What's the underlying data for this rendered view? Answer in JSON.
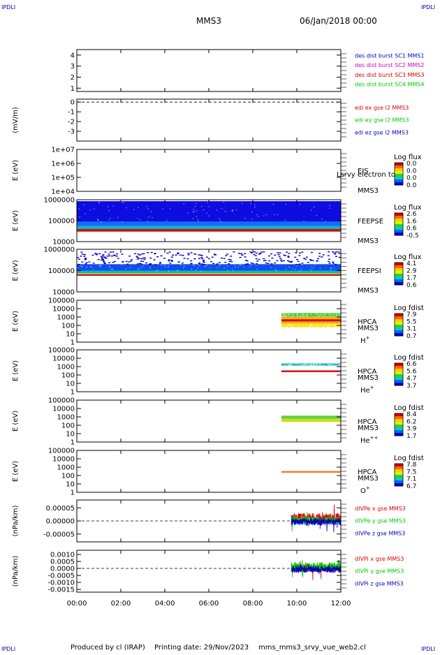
{
  "header": {
    "corner_left": "IPDLI",
    "corner_right": "IPDLI",
    "mission": "MMS3",
    "date": "06/Jan/2018 00:00"
  },
  "footer": {
    "corner_left": "IPDLI",
    "corner_right": "IPDLI",
    "produced_by": "Produced by cl (IRAP)",
    "printing_date": "Printing date: 29/Nov/2023",
    "file": "mms_mms3_srvy_vue_web2.cl"
  },
  "colors": {
    "axis": "#000000",
    "mms1": "#0000cc",
    "mms2": "#cc00cc",
    "mms3": "#cc0000",
    "mms4": "#00cc00",
    "x_comp": "#dd0000",
    "y_comp": "#00cc00",
    "z_comp": "#0000cc"
  },
  "chart_data": [
    {
      "id": "panel-des",
      "type": "line",
      "ylim": [
        0.7,
        4.5
      ],
      "yticks": [
        {
          "v": 1,
          "label": "1"
        },
        {
          "v": 2,
          "label": "2"
        },
        {
          "v": 3,
          "label": "3"
        },
        {
          "v": 4,
          "label": "4"
        }
      ],
      "legend": [
        {
          "text": "des dist burst SC1 MMS1",
          "color": "#0000cc"
        },
        {
          "text": "des dist burst SC2 MMS2",
          "color": "#cc00cc"
        },
        {
          "text": "des dist burst SC3 MMS3",
          "color": "#cc0000"
        },
        {
          "text": "des dist burst SC4 MMS4",
          "color": "#00cc00"
        }
      ]
    },
    {
      "id": "panel-edi",
      "type": "line",
      "ylabel": "(mV/m)",
      "ylim": [
        -4,
        0.3
      ],
      "yticks": [
        {
          "v": 0,
          "label": "0"
        },
        {
          "v": -1,
          "label": "-1"
        },
        {
          "v": -2,
          "label": "-2"
        },
        {
          "v": -3,
          "label": "-3"
        }
      ],
      "zero_line": 0,
      "legend": [
        {
          "text": "edi ex gse l2 MMS3",
          "color": "#dd0000"
        },
        {
          "text": "edi ey gse l2 MMS3",
          "color": "#00cc00"
        },
        {
          "text": "edi ez gse l2 MMS3",
          "color": "#0000cc"
        }
      ]
    },
    {
      "id": "panel-eis",
      "type": "heatmap",
      "ylabel": "E (eV)",
      "log": true,
      "ylim": [
        10000,
        10000000
      ],
      "yticks": [
        {
          "v": 10000,
          "label": "1e+04"
        },
        {
          "v": 100000,
          "label": "1e+05"
        },
        {
          "v": 1000000,
          "label": "1e+06"
        },
        {
          "v": 10000000,
          "label": "1e+07"
        }
      ],
      "instrument": [
        "EIS",
        "MMS3"
      ],
      "overlay": "Lsrvy electron to",
      "colorbar": {
        "title": "Log flux",
        "ticks": [
          "0.0",
          "0.0",
          "0.0",
          "0.0"
        ]
      },
      "bands": []
    },
    {
      "id": "panel-feeps-e",
      "type": "heatmap",
      "ylabel": "E (eV)",
      "log": true,
      "ylim": [
        10000,
        1000000
      ],
      "yticks": [
        {
          "v": 10000,
          "label": "10000"
        },
        {
          "v": 100000,
          "label": "100000"
        },
        {
          "v": 1000000,
          "label": "1000000"
        }
      ],
      "instrument": [
        "FEEPSE",
        "MMS3"
      ],
      "colorbar": {
        "title": "Log flux",
        "ticks": [
          "2.6",
          "1.6",
          "0.6",
          "-0.5"
        ]
      },
      "bands": [
        {
          "t0": 0,
          "t1": 12,
          "e0": 30000,
          "e1": 40000,
          "color": "#cc0000"
        },
        {
          "t0": 0,
          "t1": 12,
          "e0": 40000,
          "e1": 55000,
          "color": "#00b4b4"
        },
        {
          "t0": 0,
          "t1": 12,
          "e0": 55000,
          "e1": 90000,
          "color": "#0066ff"
        },
        {
          "t0": 0,
          "t1": 12,
          "e0": 90000,
          "e1": 850000,
          "color": "#0000dd",
          "speckle": true
        }
      ]
    },
    {
      "id": "panel-feeps-i",
      "type": "heatmap",
      "ylabel": "E (eV)",
      "log": true,
      "ylim": [
        10000,
        1000000
      ],
      "yticks": [
        {
          "v": 10000,
          "label": "10000"
        },
        {
          "v": 100000,
          "label": "100000"
        },
        {
          "v": 1000000,
          "label": "1000000"
        }
      ],
      "instrument": [
        "FEEPSI",
        "MMS3"
      ],
      "colorbar": {
        "title": "Log flux",
        "ticks": [
          "4.1",
          "2.9",
          "1.7",
          "0.6"
        ]
      },
      "bands": [
        {
          "t0": 0,
          "t1": 12,
          "e0": 57000,
          "e1": 68000,
          "color": "#cc0000"
        },
        {
          "t0": 0,
          "t1": 12,
          "e0": 68000,
          "e1": 75000,
          "color": "#e0d000"
        },
        {
          "t0": 0,
          "t1": 12,
          "e0": 75000,
          "e1": 100000,
          "color": "#00b4b4"
        },
        {
          "t0": 0,
          "t1": 12,
          "e0": 100000,
          "e1": 200000,
          "color": "#0044ee",
          "speckle": true
        },
        {
          "t0": 0,
          "t1": 12,
          "e0": 200000,
          "e1": 800000,
          "color": "#0000cc",
          "sparse": true
        }
      ]
    },
    {
      "id": "panel-hpca-h",
      "type": "heatmap",
      "ylabel": "E (eV)",
      "log": true,
      "ylim": [
        1,
        100000
      ],
      "yticks": [
        {
          "v": 1,
          "label": "1"
        },
        {
          "v": 10,
          "label": "10"
        },
        {
          "v": 100,
          "label": "100"
        },
        {
          "v": 1000,
          "label": "1000"
        },
        {
          "v": 10000,
          "label": "10000"
        },
        {
          "v": 100000,
          "label": "100000"
        }
      ],
      "instrument": [
        "HPCA",
        "MMS3"
      ],
      "species": "H",
      "species_sup": "+",
      "colorbar": {
        "title": "Log fdist",
        "ticks": [
          "7.9",
          "5.5",
          "3.1",
          "0.7"
        ]
      },
      "bands": [
        {
          "t0": 9.3,
          "t1": 12,
          "e0": 60,
          "e1": 180,
          "color": "#ffe000",
          "speckle": true
        },
        {
          "t0": 9.3,
          "t1": 12,
          "e0": 180,
          "e1": 300,
          "color": "#ff9900"
        },
        {
          "t0": 9.3,
          "t1": 12,
          "e0": 300,
          "e1": 550,
          "color": "#cc0000"
        },
        {
          "t0": 9.3,
          "t1": 12,
          "e0": 550,
          "e1": 1200,
          "color": "#ffaa00"
        },
        {
          "t0": 9.3,
          "t1": 12,
          "e0": 1200,
          "e1": 3000,
          "color": "#33cc33",
          "speckle": true
        }
      ]
    },
    {
      "id": "panel-hpca-he",
      "type": "heatmap",
      "ylabel": "E (eV)",
      "log": true,
      "ylim": [
        1,
        100000
      ],
      "yticks": [
        {
          "v": 1,
          "label": "1"
        },
        {
          "v": 10,
          "label": "10"
        },
        {
          "v": 100,
          "label": "100"
        },
        {
          "v": 1000,
          "label": "1000"
        },
        {
          "v": 10000,
          "label": "10000"
        },
        {
          "v": 100000,
          "label": "100000"
        }
      ],
      "instrument": [
        "HPCA",
        "MMS3"
      ],
      "species": "He",
      "species_sup": "+",
      "colorbar": {
        "title": "Log fdist",
        "ticks": [
          "6.6",
          "5.6",
          "4.7",
          "3.7"
        ]
      },
      "bands": [
        {
          "t0": 9.3,
          "t1": 12,
          "e0": 220,
          "e1": 350,
          "color": "#cc0000"
        },
        {
          "t0": 9.3,
          "t1": 12,
          "e0": 1300,
          "e1": 2400,
          "color": "#00b4b4",
          "speckle": true
        }
      ]
    },
    {
      "id": "panel-hpca-he2",
      "type": "heatmap",
      "ylabel": "E (eV)",
      "log": true,
      "ylim": [
        1,
        100000
      ],
      "yticks": [
        {
          "v": 1,
          "label": "1"
        },
        {
          "v": 10,
          "label": "10"
        },
        {
          "v": 100,
          "label": "100"
        },
        {
          "v": 1000,
          "label": "1000"
        },
        {
          "v": 10000,
          "label": "10000"
        },
        {
          "v": 100000,
          "label": "100000"
        }
      ],
      "instrument": [
        "HPCA",
        "MMS3"
      ],
      "species": "He",
      "species_sup": "++",
      "colorbar": {
        "title": "Log fdist",
        "ticks": [
          "8.4",
          "6.2",
          "3.9",
          "1.7"
        ]
      },
      "bands": [
        {
          "t0": 9.3,
          "t1": 12,
          "e0": 250,
          "e1": 600,
          "color": "#ccdd00"
        },
        {
          "t0": 9.3,
          "t1": 12,
          "e0": 600,
          "e1": 1400,
          "color": "#55cc44"
        }
      ]
    },
    {
      "id": "panel-hpca-o",
      "type": "heatmap",
      "ylabel": "E (eV)",
      "log": true,
      "ylim": [
        1,
        100000
      ],
      "yticks": [
        {
          "v": 1,
          "label": "1"
        },
        {
          "v": 10,
          "label": "10"
        },
        {
          "v": 100,
          "label": "100"
        },
        {
          "v": 1000,
          "label": "1000"
        },
        {
          "v": 10000,
          "label": "10000"
        },
        {
          "v": 100000,
          "label": "100000"
        }
      ],
      "instrument": [
        "HPCA",
        "MMS3"
      ],
      "species": "O",
      "species_sup": "+",
      "colorbar": {
        "title": "Log fdist",
        "ticks": [
          "7.8",
          "7.5",
          "7.1",
          "6.7"
        ]
      },
      "bands": [
        {
          "t0": 9.3,
          "t1": 12,
          "e0": 220,
          "e1": 340,
          "color": "#ff6600"
        }
      ]
    },
    {
      "id": "panel-divpe",
      "type": "line",
      "ylabel": "(nPa/km)",
      "ylim": [
        -8e-05,
        8e-05
      ],
      "yticks": [
        {
          "v": 5e-05,
          "label": "0.00005"
        },
        {
          "v": 0,
          "label": "0.00000"
        },
        {
          "v": -5e-05,
          "label": "-0.00005"
        }
      ],
      "zero_line": 0,
      "series": [
        {
          "name": "dIVPe x gse MMS3",
          "color": "#dd0000",
          "t0": 9.75,
          "t1": 12,
          "mean": 1.2e-05,
          "amp": 1.8e-05
        },
        {
          "name": "dIVPe y gse MMS3",
          "color": "#00cc00",
          "t0": 9.75,
          "t1": 12,
          "mean": 2e-06,
          "amp": 1.6e-05
        },
        {
          "name": "dIVPe z gse MMS3",
          "color": "#0000cc",
          "t0": 9.75,
          "t1": 12,
          "mean": -3e-06,
          "amp": 1.4e-05
        }
      ]
    },
    {
      "id": "panel-divpi",
      "type": "line",
      "ylabel": "(nPa/km)",
      "ylim": [
        -0.0017,
        0.0013
      ],
      "yticks": [
        {
          "v": 0.001,
          "label": "0.0010"
        },
        {
          "v": 0.0005,
          "label": "0.0005"
        },
        {
          "v": 0,
          "label": "0.0000"
        },
        {
          "v": -0.0005,
          "label": "-0.0005"
        },
        {
          "v": -0.001,
          "label": "-0.0010"
        },
        {
          "v": -0.0015,
          "label": "-0.0015"
        }
      ],
      "zero_line": 0,
      "series": [
        {
          "name": "dIVPi x gse MMS3",
          "color": "#dd0000",
          "t0": 9.75,
          "t1": 12,
          "mean": 0.0,
          "amp": 0.0003
        },
        {
          "name": "dIVPi y gse MMS3",
          "color": "#00cc00",
          "t0": 9.75,
          "t1": 12,
          "mean": 0.0001,
          "amp": 0.00035
        },
        {
          "name": "dIVPi z gse MMS3",
          "color": "#0000cc",
          "t0": 9.75,
          "t1": 12,
          "mean": -5e-05,
          "amp": 0.00025
        }
      ]
    }
  ],
  "time_axis": {
    "range_hours": [
      0,
      12
    ],
    "ticks": [
      "00:00",
      "02:00",
      "04:00",
      "06:00",
      "08:00",
      "10:00",
      "12:00"
    ]
  }
}
